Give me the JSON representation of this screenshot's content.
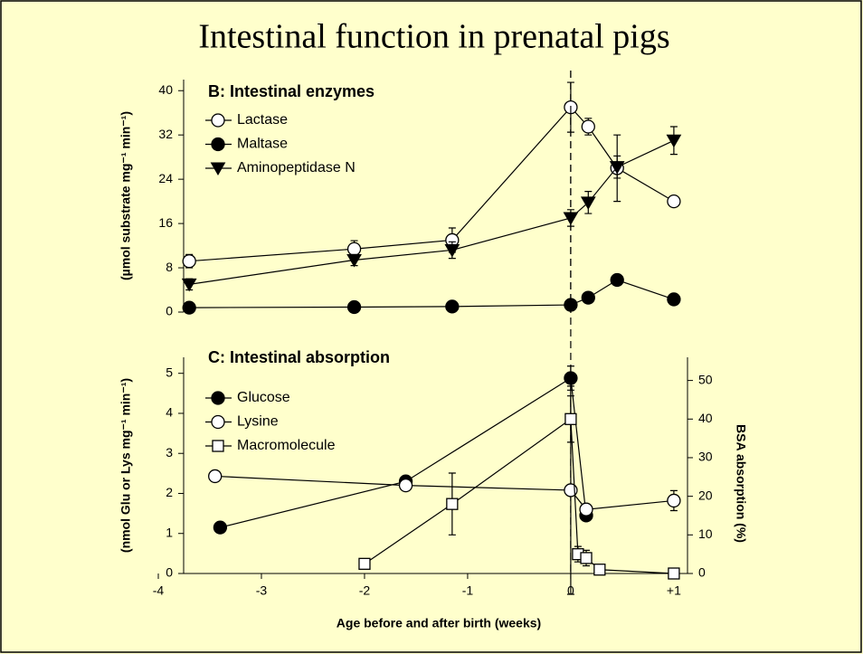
{
  "title": "Intestinal function in prenatal pigs",
  "chart_data": [
    {
      "type": "line",
      "title": "B: Intestinal enzymes",
      "y_label": "(µmol substrate mg⁻¹ min⁻¹)",
      "xlim": [
        -4,
        1.15
      ],
      "ylim": [
        0,
        42
      ],
      "yticks": [
        0,
        8,
        16,
        24,
        32,
        40
      ],
      "vline": 0,
      "series": [
        {
          "name": "Lactase",
          "marker": "open-circle",
          "color": "#000000",
          "x": [
            -3.7,
            -2.1,
            -1.15,
            0,
            0.17,
            0.45,
            1.0
          ],
          "values": [
            9.2,
            11.4,
            13.0,
            37.0,
            33.5,
            26.0,
            20.0
          ],
          "errors": [
            1.2,
            1.5,
            2.2,
            4.5,
            1.5,
            6.0,
            null
          ]
        },
        {
          "name": "Maltase",
          "marker": "filled-circle",
          "color": "#000000",
          "x": [
            -3.7,
            -2.1,
            -1.15,
            0,
            0.17,
            0.45,
            1.0
          ],
          "values": [
            0.8,
            0.9,
            1.0,
            1.3,
            2.6,
            5.8,
            2.3
          ]
        },
        {
          "name": "Aminopeptidase N",
          "marker": "down-triangle",
          "color": "#000000",
          "x": [
            -3.7,
            -2.1,
            -1.15,
            0,
            0.17,
            0.45,
            1.0
          ],
          "values": [
            5.0,
            9.4,
            11.2,
            17.0,
            19.8,
            26.2,
            31.0
          ],
          "errors": [
            1.0,
            1.0,
            1.5,
            1.5,
            2.0,
            2.0,
            2.5
          ]
        }
      ]
    },
    {
      "type": "line",
      "title": "C: Intestinal absorption",
      "x_label": "Age before and after birth (weeks)",
      "y_label": "(nmol Glu or Lys mg⁻¹ min⁻¹)",
      "y2_label": "BSA absorption (%)",
      "xlim": [
        -4,
        1.15
      ],
      "xticks": [
        -4,
        -3,
        -2,
        -1,
        0,
        {
          "value": 1,
          "label": "+1"
        }
      ],
      "ylim": [
        0,
        5.4
      ],
      "yticks": [
        0,
        1,
        2,
        3,
        4,
        5
      ],
      "y2lim": [
        0,
        56
      ],
      "y2ticks": [
        0,
        10,
        20,
        30,
        40,
        50
      ],
      "vline": 0,
      "series": [
        {
          "name": "Glucose",
          "marker": "filled-circle",
          "color": "#000000",
          "x": [
            -3.4,
            -1.6,
            0,
            0.15
          ],
          "values": [
            1.15,
            2.3,
            4.88,
            1.45
          ],
          "errors": [
            null,
            0.1,
            0.3,
            0.1
          ]
        },
        {
          "name": "Lysine",
          "marker": "open-circle",
          "color": "#000000",
          "x": [
            -3.45,
            -1.6,
            0,
            0.15,
            1.0
          ],
          "values": [
            2.43,
            2.2,
            2.08,
            1.6,
            1.82
          ],
          "errors": [
            0.1,
            null,
            2.6,
            null,
            0.25
          ]
        },
        {
          "name": "Macromolecule",
          "marker": "open-square",
          "color": "#000000",
          "axis": "y2",
          "x": [
            -2,
            -1.15,
            0,
            0.07,
            0.15,
            0.28,
            1.0
          ],
          "values": [
            2.5,
            18,
            40,
            5,
            4,
            1,
            0
          ],
          "errors": [
            null,
            8,
            6,
            2,
            2,
            null,
            null
          ]
        }
      ]
    }
  ]
}
